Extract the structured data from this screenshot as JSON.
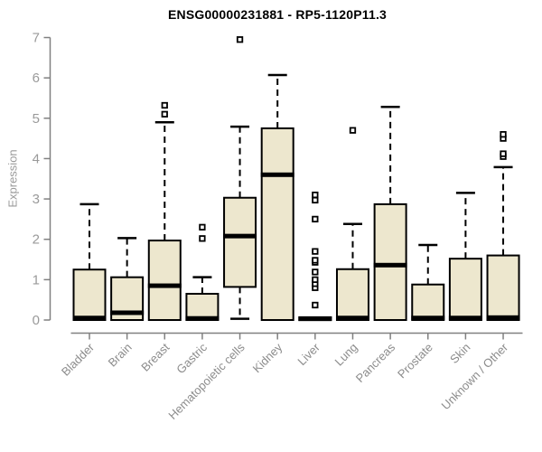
{
  "page": {
    "background": "#ffffff"
  },
  "chart_data": {
    "type": "boxplot",
    "title": "ENSG00000231881 - RP5-1120P11.3",
    "ylabel": "Expression",
    "xlabel": "",
    "ylim": [
      0,
      7
    ],
    "y_ticks": [
      0,
      1,
      2,
      3,
      4,
      5,
      6,
      7
    ],
    "grid": false,
    "legend": null,
    "box_fill": "#EDE7CE",
    "box_stroke": "#000000",
    "median_color": "#000000",
    "whisker_color": "#000000",
    "outlier_fill": "#ffffff",
    "axis_color": "#808080",
    "tick_label_color": "#9a9a9a",
    "category_label_color": "#8c8c8c",
    "title_color": "#000000",
    "categories": [
      "Bladder",
      "Brain",
      "Breast",
      "Gastric",
      "Hematopoietic cells",
      "Kidney",
      "Liver",
      "Lung",
      "Pancreas",
      "Prostate",
      "Skin",
      "Unknown / Other"
    ],
    "series": [
      {
        "category": "Bladder",
        "q1": 0,
        "median": 0.05,
        "q3": 1.25,
        "whisker_low": 0,
        "whisker_high": 2.87,
        "outliers": []
      },
      {
        "category": "Brain",
        "q1": 0,
        "median": 0.18,
        "q3": 1.06,
        "whisker_low": 0,
        "whisker_high": 2.03,
        "outliers": []
      },
      {
        "category": "Breast",
        "q1": 0,
        "median": 0.85,
        "q3": 1.97,
        "whisker_low": 0,
        "whisker_high": 4.9,
        "outliers": [
          5.1,
          5.32
        ]
      },
      {
        "category": "Gastric",
        "q1": 0,
        "median": 0.04,
        "q3": 0.65,
        "whisker_low": 0,
        "whisker_high": 1.06,
        "outliers": [
          2.02,
          2.3
        ]
      },
      {
        "category": "Hematopoietic cells",
        "q1": 0.82,
        "median": 2.08,
        "q3": 3.03,
        "whisker_low": 0.03,
        "whisker_high": 4.79,
        "outliers": [
          6.95
        ]
      },
      {
        "category": "Kidney",
        "q1": 0,
        "median": 3.6,
        "q3": 4.75,
        "whisker_low": 0,
        "whisker_high": 6.07,
        "outliers": []
      },
      {
        "category": "Liver",
        "q1": 0,
        "median": 0.03,
        "q3": 0.07,
        "whisker_low": 0,
        "whisker_high": 0.07,
        "outliers": [
          0.37,
          0.8,
          0.9,
          1.0,
          1.19,
          1.43,
          1.48,
          1.7,
          2.5,
          2.97,
          3.1
        ]
      },
      {
        "category": "Lung",
        "q1": 0,
        "median": 0.05,
        "q3": 1.26,
        "whisker_low": 0,
        "whisker_high": 2.38,
        "outliers": [
          4.7
        ]
      },
      {
        "category": "Pancreas",
        "q1": 0,
        "median": 1.36,
        "q3": 2.87,
        "whisker_low": 0,
        "whisker_high": 5.28,
        "outliers": []
      },
      {
        "category": "Prostate",
        "q1": 0,
        "median": 0.05,
        "q3": 0.88,
        "whisker_low": 0,
        "whisker_high": 1.86,
        "outliers": []
      },
      {
        "category": "Skin",
        "q1": 0,
        "median": 0.05,
        "q3": 1.52,
        "whisker_low": 0,
        "whisker_high": 3.15,
        "outliers": []
      },
      {
        "category": "Unknown / Other",
        "q1": 0,
        "median": 0.06,
        "q3": 1.6,
        "whisker_low": 0,
        "whisker_high": 3.79,
        "outliers": [
          4.05,
          4.12,
          4.5,
          4.6
        ]
      }
    ]
  }
}
